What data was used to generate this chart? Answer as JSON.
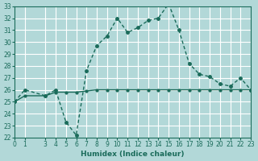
{
  "xlabel": "Humidex (Indice chaleur)",
  "ylabel": "",
  "bg_color": "#b2d8d8",
  "grid_color": "#ffffff",
  "line_color": "#1a6b5a",
  "marker_color": "#1a6b5a",
  "ylim": [
    22,
    33
  ],
  "xlim": [
    0,
    23
  ],
  "yticks": [
    22,
    23,
    24,
    25,
    26,
    27,
    28,
    29,
    30,
    31,
    32,
    33
  ],
  "xticks": [
    0,
    1,
    3,
    4,
    5,
    6,
    7,
    8,
    9,
    10,
    11,
    12,
    13,
    14,
    15,
    16,
    17,
    18,
    19,
    20,
    21,
    22,
    23
  ],
  "series1_x": [
    0,
    1,
    3,
    4,
    5,
    6,
    7,
    8,
    9,
    10,
    11,
    12,
    13,
    14,
    15,
    16,
    17,
    18,
    19,
    20,
    21,
    22,
    23
  ],
  "series1_y": [
    25.0,
    26.0,
    25.5,
    26.0,
    23.3,
    22.2,
    27.6,
    29.7,
    30.5,
    32.0,
    30.8,
    31.2,
    31.8,
    32.0,
    33.2,
    31.0,
    28.2,
    27.3,
    27.1,
    26.5,
    26.3,
    27.0,
    26.0
  ],
  "series2_x": [
    0,
    1,
    3,
    4,
    5,
    6,
    7,
    8,
    9,
    10,
    11,
    12,
    13,
    14,
    15,
    16,
    17,
    18,
    19,
    20,
    21,
    22,
    23
  ],
  "series2_y": [
    25.0,
    25.5,
    25.5,
    25.8,
    25.8,
    25.8,
    25.9,
    26.0,
    26.0,
    26.0,
    26.0,
    26.0,
    26.0,
    26.0,
    26.0,
    26.0,
    26.0,
    26.0,
    26.0,
    26.0,
    26.0,
    26.0,
    26.0
  ]
}
